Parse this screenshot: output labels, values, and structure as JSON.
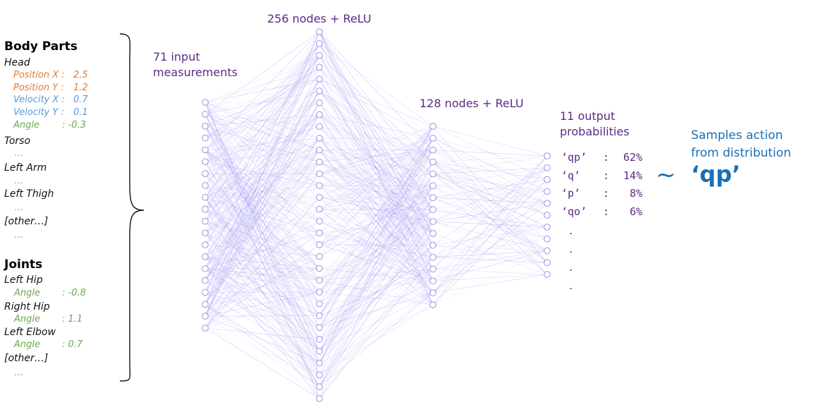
{
  "colors": {
    "position": "#e07b39",
    "velocity": "#5b9bd5",
    "angle": "#6aa84f",
    "network_text": "#5b2a86",
    "sample_text": "#1a6fb3",
    "node_stroke": "#9b8fe8",
    "edge": "#8a7ff0"
  },
  "inputs": {
    "body_parts_title": "Body Parts",
    "head": {
      "label": "Head",
      "fields": [
        {
          "name": "Position X :",
          "value": "2.5",
          "kind": "position"
        },
        {
          "name": "Position Y :",
          "value": "1.2",
          "kind": "position"
        },
        {
          "name": "Velocity X :",
          "value": "0.7",
          "kind": "velocity"
        },
        {
          "name": "Velocity Y :",
          "value": "0.1",
          "kind": "velocity"
        },
        {
          "name": "Angle",
          "value": ": -0.3",
          "kind": "angle"
        }
      ]
    },
    "other_parts": [
      "Torso",
      "Left Arm",
      "Left Thigh",
      "[other…]"
    ],
    "ellipsis": "…",
    "joints_title": "Joints",
    "joints": [
      {
        "label": "Left Hip",
        "field": "Angle",
        "value": ": -0.8"
      },
      {
        "label": "Right Hip",
        "field": "Angle",
        "value": ": 1.1"
      },
      {
        "label": "Left Elbow",
        "field": "Angle",
        "value": ": 0.7"
      }
    ],
    "joints_other": "[other…]"
  },
  "network": {
    "input_label_line1": "71 input",
    "input_label_line2": "measurements",
    "hidden1_label": "256 nodes + ReLU",
    "hidden2_label": "128 nodes + ReLU",
    "output_label_line1": "11 output",
    "output_label_line2": "probabilities"
  },
  "outputs": [
    {
      "action": "‘qp’",
      "sep": ":",
      "prob": "62%"
    },
    {
      "action": "‘q’",
      "sep": ":",
      "prob": "14%"
    },
    {
      "action": "‘p’",
      "sep": ":",
      "prob": "8%"
    },
    {
      "action": "‘qo’",
      "sep": ":",
      "prob": "6%"
    }
  ],
  "output_more": ".",
  "sampling": {
    "tilde": "~",
    "line1": "Samples action",
    "line2": "from distribution",
    "action": "‘qp’"
  }
}
